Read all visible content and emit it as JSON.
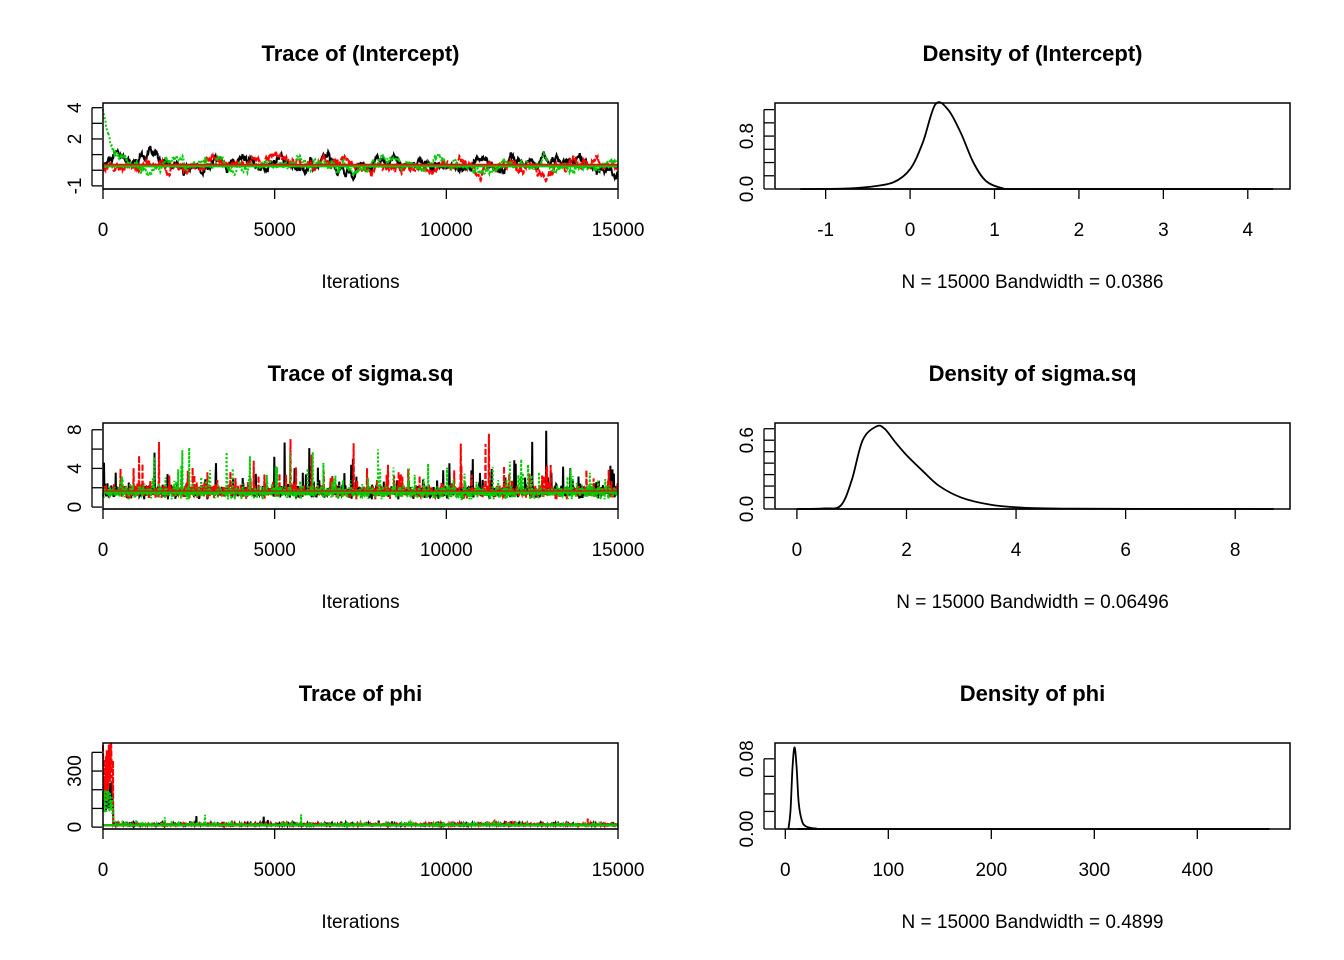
{
  "chart_data": [
    {
      "type": "line",
      "title": "Trace of (Intercept)",
      "xlabel": "Iterations",
      "xlim": [
        0,
        15000
      ],
      "ylim": [
        -1.2,
        4.3
      ],
      "xticks": [
        0,
        5000,
        10000,
        15000
      ],
      "yticks": [
        -1,
        0,
        1,
        2,
        3,
        4
      ],
      "ytick_labels": [
        "-1",
        "",
        "",
        "2",
        "",
        "4"
      ],
      "chains": [
        {
          "color": "#000000",
          "mean": 0.3,
          "sd": 0.35
        },
        {
          "color": "#ff0000",
          "mean": 0.35,
          "sd": 0.3
        },
        {
          "color": "#00cd00",
          "mean": 0.25,
          "sd": 0.3,
          "start": 4.2
        }
      ]
    },
    {
      "type": "line",
      "title": "Density of (Intercept)",
      "xlabel": "N = 15000   Bandwidth = 0.0386",
      "xlim": [
        -1.6,
        4.5
      ],
      "ylim": [
        0,
        1.3
      ],
      "xticks": [
        -1,
        0,
        1,
        2,
        3,
        4
      ],
      "yticks": [
        0,
        0.2,
        0.4,
        0.6,
        0.8,
        1.0,
        1.2
      ],
      "ytick_labels": [
        "0.0",
        "",
        "",
        "",
        "0.8",
        "",
        ""
      ],
      "x": [
        -1.3,
        -0.8,
        -0.5,
        -0.2,
        0,
        0.15,
        0.3,
        0.45,
        0.6,
        0.75,
        0.9,
        1.1,
        1.3,
        4.3
      ],
      "y": [
        0,
        0.005,
        0.03,
        0.1,
        0.3,
        0.7,
        1.28,
        1.2,
        0.85,
        0.4,
        0.12,
        0.01,
        0,
        0
      ]
    },
    {
      "type": "line",
      "title": "Trace of sigma.sq",
      "xlabel": "Iterations",
      "xlim": [
        0,
        15000
      ],
      "ylim": [
        -0.2,
        8.7
      ],
      "xticks": [
        0,
        5000,
        10000,
        15000
      ],
      "yticks": [
        0,
        2,
        4,
        6,
        8
      ],
      "ytick_labels": [
        "0",
        "",
        "4",
        "",
        "8"
      ],
      "chains": [
        {
          "color": "#000000",
          "mean": 1.6,
          "sd": 0.5,
          "max": 8.3
        },
        {
          "color": "#ff0000",
          "mean": 1.6,
          "sd": 0.5,
          "max": 7.6
        },
        {
          "color": "#00cd00",
          "mean": 1.5,
          "sd": 0.5,
          "max": 6.0
        }
      ]
    },
    {
      "type": "line",
      "title": "Density of sigma.sq",
      "xlabel": "N = 15000   Bandwidth = 0.06496",
      "xlim": [
        -0.4,
        9
      ],
      "ylim": [
        0,
        0.75
      ],
      "xticks": [
        0,
        2,
        4,
        6,
        8
      ],
      "yticks": [
        0,
        0.1,
        0.2,
        0.3,
        0.4,
        0.5,
        0.6,
        0.7
      ],
      "ytick_labels": [
        "0.0",
        "",
        "",
        "",
        "",
        "",
        "0.6",
        ""
      ],
      "x": [
        0,
        0.5,
        0.8,
        1.0,
        1.2,
        1.45,
        1.6,
        1.8,
        2.0,
        2.3,
        2.6,
        3.0,
        3.5,
        4.0,
        5,
        8.7
      ],
      "y": [
        0,
        0.005,
        0.03,
        0.25,
        0.6,
        0.72,
        0.7,
        0.58,
        0.47,
        0.33,
        0.2,
        0.1,
        0.04,
        0.015,
        0.003,
        0
      ]
    },
    {
      "type": "line",
      "title": "Trace of phi",
      "xlabel": "Iterations",
      "xlim": [
        0,
        15000
      ],
      "ylim": [
        -10,
        450
      ],
      "xticks": [
        0,
        5000,
        10000,
        15000
      ],
      "yticks": [
        0,
        100,
        200,
        300,
        400
      ],
      "ytick_labels": [
        "0",
        "",
        "",
        "300",
        ""
      ],
      "chains": [
        {
          "color": "#000000",
          "mean": 10,
          "sd": 4,
          "burnin_max": 250
        },
        {
          "color": "#ff0000",
          "mean": 10,
          "sd": 4,
          "burnin_max": 440
        },
        {
          "color": "#00cd00",
          "mean": 10,
          "sd": 4,
          "burnin_max": 200
        }
      ]
    },
    {
      "type": "line",
      "title": "Density of phi",
      "xlabel": "N = 15000   Bandwidth = 0.4899",
      "xlim": [
        -10,
        490
      ],
      "ylim": [
        0,
        0.098
      ],
      "xticks": [
        0,
        100,
        200,
        300,
        400
      ],
      "yticks": [
        0,
        0.02,
        0.04,
        0.06,
        0.08
      ],
      "ytick_labels": [
        "0.00",
        "",
        "",
        "",
        "0.08"
      ],
      "x": [
        3,
        5,
        7,
        9,
        11,
        13,
        16,
        20,
        30,
        50,
        470
      ],
      "y": [
        0,
        0.02,
        0.07,
        0.093,
        0.07,
        0.03,
        0.01,
        0.003,
        0.0005,
        0,
        0
      ]
    }
  ]
}
